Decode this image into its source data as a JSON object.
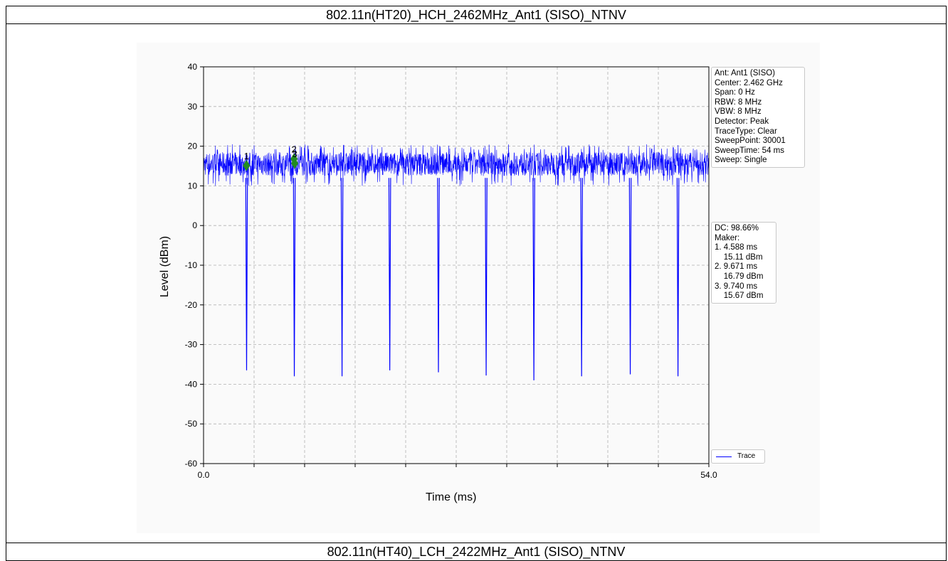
{
  "page": {
    "top_title": "802.11n(HT20)_HCH_2462MHz_Ant1 (SISO)_NTNV",
    "bottom_title": "802.11n(HT40)_LCH_2422MHz_Ant1 (SISO)_NTNV"
  },
  "info_box": [
    "Ant: Ant1 (SISO)",
    "Center: 2.462 GHz",
    "Span: 0 Hz",
    "RBW: 8 MHz",
    "VBW: 8 MHz",
    "Detector: Peak",
    "TraceType: Clear",
    "SweepPoint: 30001",
    "SweepTime: 54 ms",
    "Sweep: Single"
  ],
  "dc_box": [
    "DC: 98.66%",
    "Maker:",
    "1. 4.588 ms",
    "    15.11 dBm",
    "2. 9.671 ms",
    "    16.79 dBm",
    "3. 9.740 ms",
    "    15.67 dBm"
  ],
  "chart_data": {
    "type": "line",
    "title": "802.11n(HT20)_HCH_2462MHz_Ant1 (SISO)_NTNV",
    "xlabel": "Time (ms)",
    "ylabel": "Level (dBm)",
    "xlim": [
      0,
      54
    ],
    "ylim": [
      -60,
      40
    ],
    "x_tick_labels": [
      "0.0",
      "54.0"
    ],
    "x_minor_ticks": [
      5.4,
      10.8,
      16.2,
      21.6,
      27.0,
      32.4,
      37.8,
      43.2,
      48.6
    ],
    "y_ticks": [
      40,
      30,
      20,
      10,
      0,
      -10,
      -20,
      -30,
      -40,
      -50,
      -60
    ],
    "grid": true,
    "legend_position": "bottom-right, outside plot",
    "series": [
      {
        "name": "Trace",
        "color": "#0000ff",
        "noise_band_dbm": [
          10,
          20.5
        ],
        "mean_level_dbm": 15.5,
        "dips": [
          {
            "x": 4.6,
            "y": -36.5
          },
          {
            "x": 9.7,
            "y": -38
          },
          {
            "x": 14.8,
            "y": -38
          },
          {
            "x": 19.9,
            "y": -36.5
          },
          {
            "x": 25.1,
            "y": -37
          },
          {
            "x": 30.2,
            "y": -37.8
          },
          {
            "x": 35.3,
            "y": -39
          },
          {
            "x": 40.4,
            "y": -38
          },
          {
            "x": 45.6,
            "y": -37.5
          },
          {
            "x": 50.7,
            "y": -38
          }
        ]
      }
    ],
    "markers": [
      {
        "label": "1",
        "x": 4.588,
        "y": 15.11,
        "color": "#228b22"
      },
      {
        "label": "2",
        "x": 9.671,
        "y": 16.79,
        "color": "#228b22"
      },
      {
        "label": "3",
        "x": 9.74,
        "y": 15.67,
        "color": "#228b22"
      }
    ]
  }
}
